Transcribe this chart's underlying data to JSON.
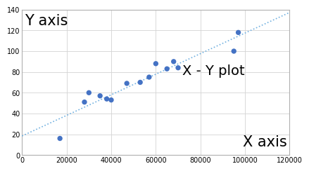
{
  "x_data": [
    17000,
    28000,
    30000,
    35000,
    38000,
    40000,
    47000,
    53000,
    57000,
    60000,
    65000,
    68000,
    70000,
    95000,
    97000
  ],
  "y_data": [
    16,
    51,
    60,
    57,
    54,
    53,
    69,
    70,
    75,
    88,
    83,
    90,
    84,
    100,
    118
  ],
  "point_color": "#4472C4",
  "trendline_color": "#70B0E0",
  "annotation_xy_plot": "X - Y plot",
  "annotation_xlabel": "X axis",
  "annotation_ylabel": "Y axis",
  "xlim": [
    0,
    120000
  ],
  "ylim": [
    0,
    140
  ],
  "xticks": [
    0,
    20000,
    40000,
    60000,
    80000,
    100000,
    120000
  ],
  "yticks": [
    0,
    20,
    40,
    60,
    80,
    100,
    120,
    140
  ],
  "grid_color": "#D3D3D3",
  "bg_color": "#FFFFFF",
  "marker_size": 28,
  "trendline_linewidth": 1.2,
  "tick_fontsize": 7,
  "ylabel_fontsize": 15,
  "xlabel_fontsize": 15,
  "plot_label_fontsize": 14
}
